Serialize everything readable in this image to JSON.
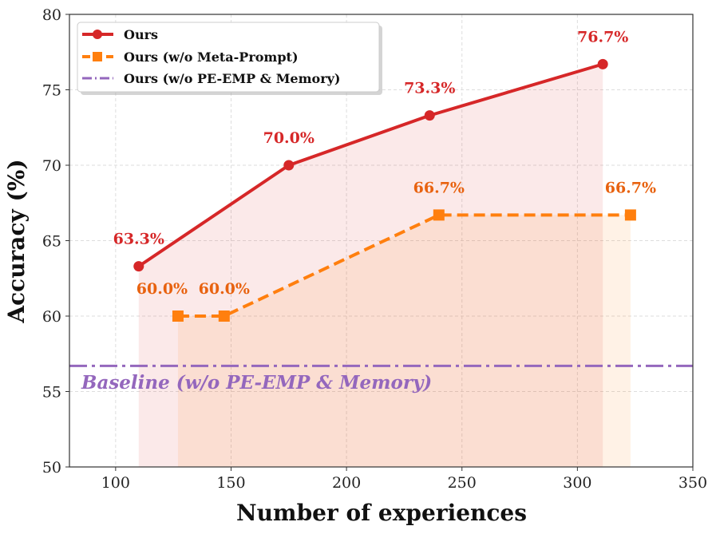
{
  "chart_data": {
    "type": "line",
    "xlabel": "Number of experiences",
    "ylabel": "Accuracy (%)",
    "xlim": [
      80,
      350
    ],
    "ylim": [
      50,
      80
    ],
    "xticks": [
      100,
      150,
      200,
      250,
      300,
      350
    ],
    "yticks": [
      50,
      55,
      60,
      65,
      70,
      75,
      80
    ],
    "grid": true,
    "legend_position": "top-left",
    "series": [
      {
        "name": "Ours",
        "color": "#d62728",
        "marker": "circle",
        "style": "solid",
        "x": [
          110,
          175,
          236,
          311
        ],
        "y": [
          63.3,
          70.0,
          73.3,
          76.7
        ],
        "labels": [
          "63.3%",
          "70.0%",
          "73.3%",
          "76.7%"
        ],
        "label_color": "#d62728",
        "fill": true
      },
      {
        "name": "Ours (w/o Meta-Prompt)",
        "color": "#ff7f0e",
        "marker": "square",
        "style": "dashed",
        "x": [
          127,
          147,
          240,
          323
        ],
        "y": [
          60.0,
          60.0,
          66.7,
          66.7
        ],
        "labels": [
          "60.0%",
          "60.0%",
          "66.7%",
          "66.7%"
        ],
        "label_color": "#e8620f",
        "fill": true
      },
      {
        "name": "Ours (w/o PE-EMP & Memory)",
        "color": "#9467bd",
        "style": "dashdot",
        "y_constant": 56.7,
        "annotation": "Baseline (w/o PE-EMP & Memory)"
      }
    ]
  }
}
